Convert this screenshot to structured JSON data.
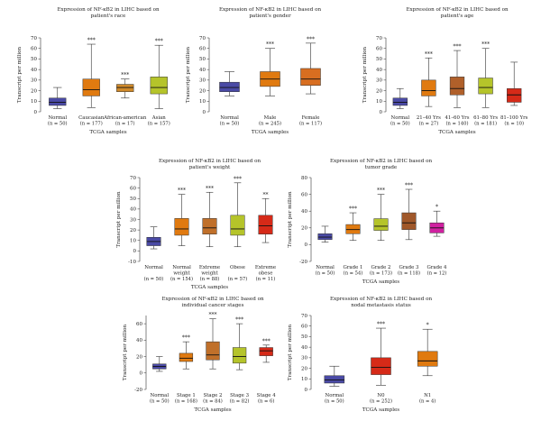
{
  "chart_data": [
    {
      "type": "box",
      "title": "Expression of NF-κB2 in LIHC based on patient's race",
      "xlabel": "TCGA samples",
      "ylabel": "Transcript per million",
      "ylim": [
        0,
        70
      ],
      "yticks": [
        0,
        10,
        20,
        30,
        40,
        50,
        60,
        70
      ],
      "boxes": [
        {
          "name": "Normal",
          "n": "(n = 50)",
          "min": 3,
          "q1": 6,
          "median": 9,
          "q3": 13,
          "max": 23,
          "sig": "",
          "color": "#4a4aa5"
        },
        {
          "name": "Caucasian",
          "n": "(n = 177)",
          "min": 4,
          "q1": 15,
          "median": 21,
          "q3": 31,
          "max": 64,
          "sig": "***",
          "color": "#e07a10"
        },
        {
          "name": "African-american",
          "n": "(n = 17)",
          "min": 13,
          "q1": 19,
          "median": 23,
          "q3": 26,
          "max": 31,
          "sig": "***",
          "color": "#d08a2a"
        },
        {
          "name": "Asian",
          "n": "(n = 157)",
          "min": 3,
          "q1": 17,
          "median": 23,
          "q3": 33,
          "max": 63,
          "sig": "***",
          "color": "#b5c42a"
        }
      ]
    },
    {
      "type": "box",
      "title": "Expression of NF-κB2 in LIHC based on patient's gender",
      "xlabel": "TCGA samples",
      "ylabel": "Transcript per million",
      "ylim": [
        0,
        70
      ],
      "yticks": [
        0,
        10,
        20,
        30,
        40,
        50,
        60,
        70
      ],
      "boxes": [
        {
          "name": "Normal",
          "n": "(n = 50)",
          "min": 15,
          "q1": 19,
          "median": 23,
          "q3": 28,
          "max": 38,
          "sig": "",
          "color": "#4a4aa5"
        },
        {
          "name": "Male",
          "n": "(n = 245)",
          "min": 15,
          "q1": 24,
          "median": 31,
          "q3": 38,
          "max": 60,
          "sig": "***",
          "color": "#e07a10"
        },
        {
          "name": "Female",
          "n": "(n = 117)",
          "min": 17,
          "q1": 25,
          "median": 31,
          "q3": 41,
          "max": 65,
          "sig": "***",
          "color": "#d86e20"
        }
      ]
    },
    {
      "type": "box",
      "title": "Expression of NF-κB2 in LIHC based on patient's age",
      "xlabel": "TCGA samples",
      "ylabel": "Transcript per million",
      "ylim": [
        0,
        70
      ],
      "yticks": [
        0,
        10,
        20,
        30,
        40,
        50,
        60,
        70
      ],
      "boxes": [
        {
          "name": "Normal",
          "n": "(n = 50)",
          "min": 3,
          "q1": 6,
          "median": 9,
          "q3": 13,
          "max": 22,
          "sig": "",
          "color": "#4a4aa5"
        },
        {
          "name": "21–40 Yrs",
          "n": "(n = 27)",
          "min": 5,
          "q1": 15,
          "median": 20,
          "q3": 30,
          "max": 51,
          "sig": "***",
          "color": "#e07a10"
        },
        {
          "name": "41–60 Yrs",
          "n": "(n = 140)",
          "min": 4,
          "q1": 16,
          "median": 22,
          "q3": 33,
          "max": 58,
          "sig": "***",
          "color": "#b0602a"
        },
        {
          "name": "61–80 Yrs",
          "n": "(n = 181)",
          "min": 4,
          "q1": 17,
          "median": 23,
          "q3": 32,
          "max": 60,
          "sig": "***",
          "color": "#b5c42a"
        },
        {
          "name": "81–100 Yrs",
          "n": "(n = 10)",
          "min": 6,
          "q1": 9,
          "median": 16,
          "q3": 22,
          "max": 47,
          "sig": "",
          "color": "#d62a18"
        }
      ]
    },
    {
      "type": "box",
      "title": "Expression of NF-κB2 in LIHC based on patient's weight",
      "xlabel": "TCGA samples",
      "ylabel": "Transcript per million",
      "ylim": [
        -10,
        70
      ],
      "yticks": [
        -10,
        0,
        10,
        20,
        30,
        40,
        50,
        60,
        70
      ],
      "boxes": [
        {
          "name": "Normal",
          "name2": "",
          "n": "(n = 50)",
          "min": 2,
          "q1": 5,
          "median": 9,
          "q3": 13,
          "max": 23,
          "sig": "",
          "color": "#4a4aa5"
        },
        {
          "name": "Normal",
          "name2": "weight",
          "n": "(n = 154)",
          "min": 5,
          "q1": 15,
          "median": 21,
          "q3": 31,
          "max": 54,
          "sig": "***",
          "color": "#e07a10"
        },
        {
          "name": "Extreme",
          "name2": "weight",
          "n": "(n = 88)",
          "min": 4,
          "q1": 16,
          "median": 22,
          "q3": 31,
          "max": 56,
          "sig": "***",
          "color": "#c0702a"
        },
        {
          "name": "Obese",
          "name2": "",
          "n": "(n = 57)",
          "min": 4,
          "q1": 15,
          "median": 21,
          "q3": 34,
          "max": 65,
          "sig": "***",
          "color": "#b5c42a"
        },
        {
          "name": "Extreme",
          "name2": "obese",
          "n": "(n = 11)",
          "min": 8,
          "q1": 16,
          "median": 24,
          "q3": 34,
          "max": 50,
          "sig": "**",
          "color": "#d62a18"
        }
      ]
    },
    {
      "type": "box",
      "title": "Expression of NF-κB2 in LIHC based on tumor grade",
      "xlabel": "TCGA samples",
      "ylabel": "Transcript per million",
      "ylim": [
        -20,
        80
      ],
      "yticks": [
        -20,
        0,
        20,
        40,
        60,
        80
      ],
      "boxes": [
        {
          "name": "Normal",
          "n": "(n = 50)",
          "min": 3,
          "q1": 6,
          "median": 9,
          "q3": 13,
          "max": 22,
          "sig": "",
          "color": "#4a4aa5"
        },
        {
          "name": "Grade 1",
          "n": "(n = 54)",
          "min": 5,
          "q1": 13,
          "median": 18,
          "q3": 24,
          "max": 38,
          "sig": "***",
          "color": "#e07a10"
        },
        {
          "name": "Grade 2",
          "n": "(n = 173)",
          "min": 5,
          "q1": 17,
          "median": 22,
          "q3": 31,
          "max": 60,
          "sig": "***",
          "color": "#b5c42a"
        },
        {
          "name": "Grade 3",
          "n": "(n = 118)",
          "min": 6,
          "q1": 18,
          "median": 26,
          "q3": 38,
          "max": 66,
          "sig": "***",
          "color": "#a0582a"
        },
        {
          "name": "Grade 4",
          "n": "(n = 12)",
          "min": 10,
          "q1": 14,
          "median": 20,
          "q3": 26,
          "max": 40,
          "sig": "*",
          "color": "#d020a0"
        }
      ]
    },
    {
      "type": "box",
      "title": "Expression of NF-κB2 in LIHC based on individual cancer stages",
      "xlabel": "TCGA samples",
      "ylabel": "Transcript per million",
      "ylim": [
        -20,
        70
      ],
      "yticks": [
        -20,
        0,
        20,
        40,
        60
      ],
      "boxes": [
        {
          "name": "Normal",
          "n": "(n = 50)",
          "min": 2,
          "q1": 5,
          "median": 8,
          "q3": 11,
          "max": 20,
          "sig": "",
          "color": "#4a4aa5"
        },
        {
          "name": "Stage 1",
          "n": "(n = 168)",
          "min": 5,
          "q1": 14,
          "median": 18,
          "q3": 24,
          "max": 38,
          "sig": "***",
          "color": "#e07a10"
        },
        {
          "name": "Stage 2",
          "n": "(n = 84)",
          "min": 5,
          "q1": 16,
          "median": 22,
          "q3": 38,
          "max": 66,
          "sig": "***",
          "color": "#c0702a"
        },
        {
          "name": "Stage 3",
          "n": "(n = 82)",
          "min": 4,
          "q1": 12,
          "median": 20,
          "q3": 31,
          "max": 60,
          "sig": "***",
          "color": "#b5c42a"
        },
        {
          "name": "Stage 4",
          "n": "(n = 6)",
          "min": 13,
          "q1": 21,
          "median": 27,
          "q3": 31,
          "max": 34,
          "sig": "***",
          "color": "#d62a18"
        }
      ]
    },
    {
      "type": "box",
      "title": "Expression of NF-κB2 in LIHC based on nodal metastasis status",
      "xlabel": "TCGA samples",
      "ylabel": "Transcript per million",
      "ylim": [
        0,
        70
      ],
      "yticks": [
        0,
        10,
        20,
        30,
        40,
        50,
        60,
        70
      ],
      "boxes": [
        {
          "name": "Normal",
          "n": "(n = 50)",
          "min": 3,
          "q1": 6,
          "median": 9,
          "q3": 13,
          "max": 22,
          "sig": "",
          "color": "#4a4aa5"
        },
        {
          "name": "N0",
          "n": "(n = 252)",
          "min": 4,
          "q1": 14,
          "median": 21,
          "q3": 30,
          "max": 58,
          "sig": "***",
          "color": "#d62a18"
        },
        {
          "name": "N1",
          "n": "(n = 4)",
          "min": 13,
          "q1": 22,
          "median": 27,
          "q3": 36,
          "max": 57,
          "sig": "*",
          "color": "#e07a10"
        }
      ]
    }
  ]
}
